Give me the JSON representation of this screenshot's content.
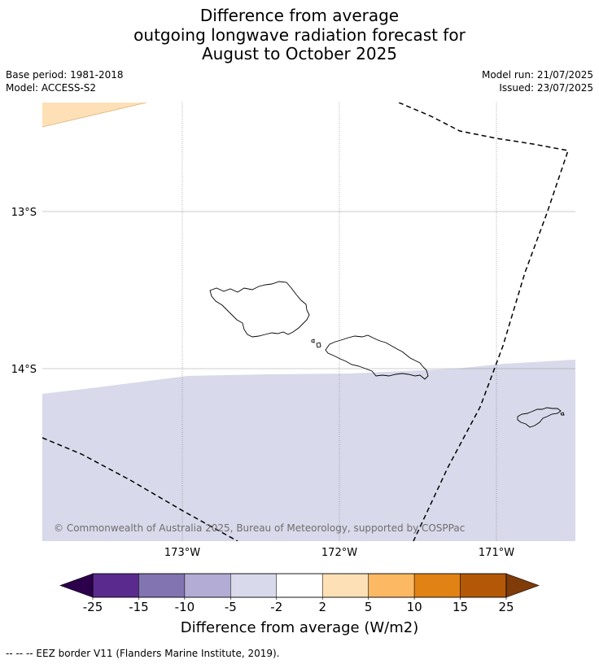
{
  "title": {
    "line1": "Difference from average",
    "line2": "outgoing longwave radiation forecast for",
    "line3": "August to October 2025"
  },
  "meta": {
    "base_period": "Base period: 1981-2018",
    "model": "Model: ACCESS-S2",
    "model_run": "Model run: 21/07/2025",
    "issued": "Issued: 23/07/2025"
  },
  "map": {
    "lat_labels": [
      "13°S",
      "14°S"
    ],
    "lon_labels": [
      "173°W",
      "172°W",
      "171°W"
    ],
    "copyright": "© Commonwealth of Australia 2025, Bureau of Meteorology, supported by COSPPac",
    "shading": [
      {
        "region": "upper-left",
        "category": "2 to 5",
        "color": "#fde0b6"
      },
      {
        "region": "southern half",
        "category": "-5 to -2",
        "color": "#d8d9ea"
      }
    ],
    "coastline_color": "#000000",
    "eez_line_style": "dashed"
  },
  "colorbar": {
    "ticks": [
      "-25",
      "-15",
      "-10",
      "-5",
      "-2",
      "2",
      "5",
      "10",
      "15",
      "25"
    ],
    "colors": [
      "#5b2a8e",
      "#8174b0",
      "#b3acd4",
      "#d8d9ea",
      "#ffffff",
      "#fde0b6",
      "#fdb863",
      "#e08214",
      "#b35806"
    ],
    "under_color": "#2d004b",
    "over_color": "#7f3b08",
    "label": "Difference from average (W/m2)"
  },
  "footnote": "--  --  -- EEZ border V11 (Flanders Marine Institute, 2019)."
}
